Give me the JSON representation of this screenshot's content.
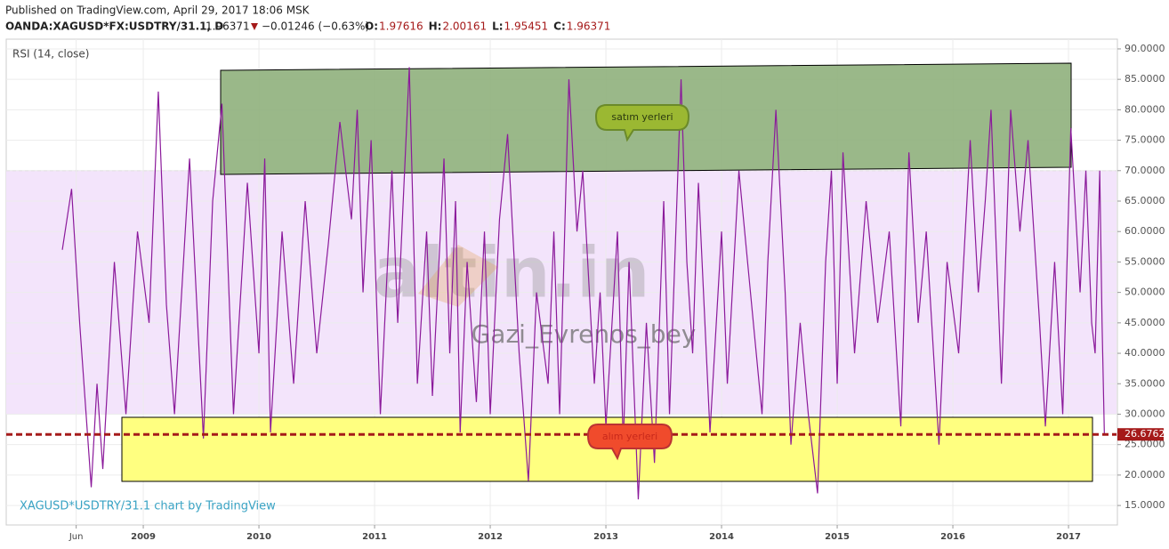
{
  "header": {
    "published": "Published on TradingView.com, April 29, 2017 18:06 MSK",
    "symbol": "OANDA:XAGUSD*FX:USDTRY/31.1, D",
    "price": "1.96371",
    "change": "−0.01246 (−0.63%)",
    "ohlc": [
      {
        "label": "O:",
        "value": "1.97616"
      },
      {
        "label": "H:",
        "value": "2.00161"
      },
      {
        "label": "L:",
        "value": "1.95451"
      },
      {
        "label": "C:",
        "value": "1.96371"
      }
    ]
  },
  "chart_data": {
    "type": "line",
    "indicator_label": "RSI (14, close)",
    "credit": "XAGUSD*USDTRY/31.1 chart by TradingView",
    "watermarks": [
      "altin.in",
      "Gazi_Evrenos_bey"
    ],
    "annotations": {
      "sell": "satım yerleri",
      "buy": "alım yerleri"
    },
    "x": [
      2008.3,
      2008.38,
      2008.45,
      2008.55,
      2008.6,
      2008.65,
      2008.75,
      2008.85,
      2008.95,
      2009.05,
      2009.13,
      2009.2,
      2009.27,
      2009.4,
      2009.52,
      2009.6,
      2009.68,
      2009.78,
      2009.9,
      2010.0,
      2010.05,
      2010.1,
      2010.2,
      2010.3,
      2010.4,
      2010.5,
      2010.6,
      2010.7,
      2010.8,
      2010.85,
      2010.9,
      2010.97,
      2011.05,
      2011.15,
      2011.2,
      2011.3,
      2011.37,
      2011.45,
      2011.5,
      2011.6,
      2011.65,
      2011.7,
      2011.74,
      2011.8,
      2011.88,
      2011.95,
      2012.0,
      2012.08,
      2012.15,
      2012.25,
      2012.33,
      2012.4,
      2012.5,
      2012.55,
      2012.6,
      2012.68,
      2012.75,
      2012.8,
      2012.9,
      2012.95,
      2013.0,
      2013.1,
      2013.15,
      2013.2,
      2013.28,
      2013.35,
      2013.42,
      2013.5,
      2013.55,
      2013.65,
      2013.7,
      2013.75,
      2013.8,
      2013.9,
      2014.0,
      2014.05,
      2014.15,
      2014.25,
      2014.35,
      2014.4,
      2014.47,
      2014.55,
      2014.6,
      2014.68,
      2014.75,
      2014.83,
      2014.9,
      2014.95,
      2015.0,
      2015.05,
      2015.15,
      2015.25,
      2015.35,
      2015.45,
      2015.55,
      2015.62,
      2015.7,
      2015.77,
      2015.88,
      2015.95,
      2016.05,
      2016.15,
      2016.22,
      2016.28,
      2016.33,
      2016.42,
      2016.5,
      2016.58,
      2016.65,
      2016.75,
      2016.8,
      2016.88,
      2016.95,
      2017.02,
      2017.1,
      2017.15,
      2017.2,
      2017.23,
      2017.27,
      2017.29,
      2017.31
    ],
    "series": [
      {
        "name": "RSI",
        "color": "#8b1a9b",
        "values": [
          57,
          67,
          45,
          18,
          35,
          21,
          55,
          30,
          60,
          45,
          83,
          48,
          30,
          72,
          26,
          65,
          81,
          30,
          68,
          40,
          72,
          27,
          60,
          35,
          65,
          40,
          58,
          78,
          62,
          80,
          50,
          75,
          30,
          70,
          45,
          87,
          35,
          60,
          33,
          72,
          40,
          65,
          27,
          55,
          32,
          60,
          30,
          62,
          76,
          40,
          19,
          50,
          35,
          60,
          30,
          85,
          60,
          70,
          35,
          50,
          28,
          60,
          25,
          55,
          16,
          45,
          22,
          65,
          30,
          85,
          55,
          40,
          68,
          27,
          60,
          35,
          70,
          50,
          30,
          55,
          80,
          50,
          25,
          45,
          30,
          17,
          55,
          70,
          35,
          73,
          40,
          65,
          45,
          60,
          28,
          73,
          45,
          60,
          25,
          55,
          40,
          75,
          50,
          65,
          80,
          35,
          80,
          60,
          75,
          45,
          28,
          55,
          30,
          77,
          50,
          70,
          45,
          40,
          70,
          45,
          26.6762
        ]
      }
    ],
    "band": [
      30,
      70
    ],
    "band_color": "#f3e4fb",
    "xlim": [
      2007.815,
      2017.415
    ],
    "xticks": [
      {
        "value": 2008.42,
        "label": "Jun"
      },
      2009,
      2010,
      2011,
      2012,
      2013,
      2014,
      2015,
      2016,
      2017
    ],
    "ylim": [
      11.8,
      91.6
    ],
    "yticks": [
      {
        "value": 15,
        "label": "15.0000"
      },
      {
        "value": 20,
        "label": "20.0000"
      },
      {
        "value": 25,
        "label": "25.0000"
      },
      {
        "value": 30,
        "label": "30.0000"
      },
      {
        "value": 35,
        "label": "35.0000"
      },
      {
        "value": 40,
        "label": "40.0000"
      },
      {
        "value": 45,
        "label": "45.0000"
      },
      {
        "value": 50,
        "label": "50.0000"
      },
      {
        "value": 55,
        "label": "55.0000"
      },
      {
        "value": 60,
        "label": "60.0000"
      },
      {
        "value": 65,
        "label": "65.0000"
      },
      {
        "value": 70,
        "label": "70.0000"
      },
      {
        "value": 75,
        "label": "75.0000"
      },
      {
        "value": 80,
        "label": "80.0000"
      },
      {
        "value": 85,
        "label": "85.0000"
      },
      {
        "value": 90,
        "label": "90.0000"
      }
    ],
    "grid": true
  }
}
